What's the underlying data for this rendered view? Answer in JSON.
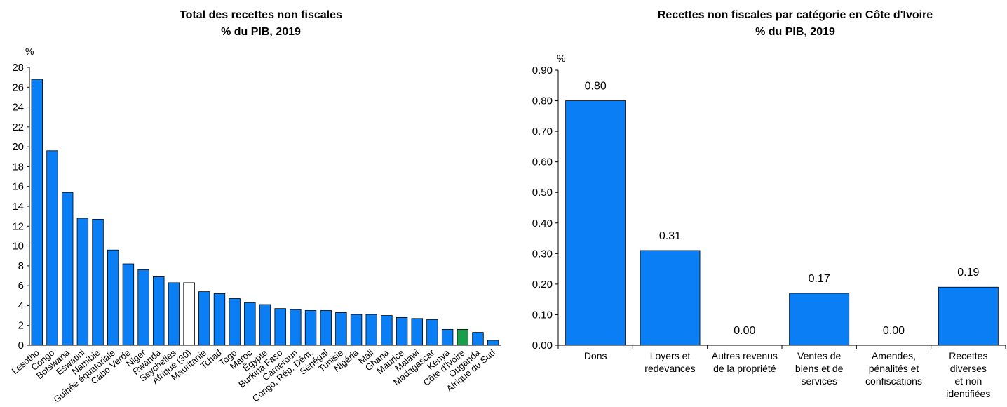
{
  "chart_data": [
    {
      "type": "bar",
      "title": "Total des recettes non fiscales",
      "subtitle": "% du PIB, 2019",
      "ylabel": "%",
      "xlabel": "",
      "ylim": [
        0,
        28
      ],
      "yticks": [
        "0",
        "2",
        "4",
        "6",
        "8",
        "10",
        "12",
        "14",
        "16",
        "18",
        "20",
        "22",
        "24",
        "26",
        "28"
      ],
      "grid": false,
      "categories": [
        "Lesotho",
        "Congo",
        "Botswana",
        "Eswatini",
        "Namibie",
        "Guinée équatoriale",
        "Cabo Verde",
        "Niger",
        "Rwanda",
        "Seychelles",
        "Afrique (30)",
        "Mauritanie",
        "Tchad",
        "Togo",
        "Maroc",
        "Égypte",
        "Burkina Faso",
        "Cameroun",
        "Congo, Rép. Dém.",
        "Sénégal",
        "Tunisie",
        "Nigéria",
        "Mali",
        "Ghana",
        "Maurice",
        "Malawi",
        "Madagascar",
        "Kenya",
        "Côte d'Ivoire",
        "Ouganda",
        "Afrique du Sud"
      ],
      "values": [
        26.8,
        19.6,
        15.4,
        12.8,
        12.7,
        9.6,
        8.2,
        7.6,
        6.9,
        6.3,
        6.3,
        5.4,
        5.2,
        4.7,
        4.3,
        4.1,
        3.7,
        3.6,
        3.5,
        3.5,
        3.3,
        3.1,
        3.1,
        3.0,
        2.8,
        2.7,
        2.6,
        1.6,
        1.6,
        1.3,
        0.5
      ],
      "colors": {
        "default": "#0a7ff5",
        "Afrique (30)": "#ffffff",
        "Côte d'Ivoire": "#1b9e4b"
      }
    },
    {
      "type": "bar",
      "title": "Recettes non fiscales par catégorie en Côte d'Ivoire",
      "subtitle": "% du PIB, 2019",
      "ylabel": "%",
      "xlabel": "",
      "ylim": [
        0,
        0.9
      ],
      "yticks": [
        "0.00",
        "0.10",
        "0.20",
        "0.30",
        "0.40",
        "0.50",
        "0.60",
        "0.70",
        "0.80",
        "0.90"
      ],
      "grid": false,
      "categories": [
        [
          "Dons"
        ],
        [
          "Loyers et",
          "redevances"
        ],
        [
          "Autres revenus",
          "de la propriété"
        ],
        [
          "Ventes de",
          "biens et de",
          "services"
        ],
        [
          "Amendes,",
          "pénalités et",
          "confiscations"
        ],
        [
          "Recettes",
          "diverses",
          "et non",
          "identifiées"
        ]
      ],
      "values": [
        0.8,
        0.31,
        0.0,
        0.17,
        0.0,
        0.19
      ],
      "data_labels": [
        "0.80",
        "0.31",
        "0.00",
        "0.17",
        "0.00",
        "0.19"
      ],
      "colors": {
        "default": "#0a7ff5"
      }
    }
  ]
}
